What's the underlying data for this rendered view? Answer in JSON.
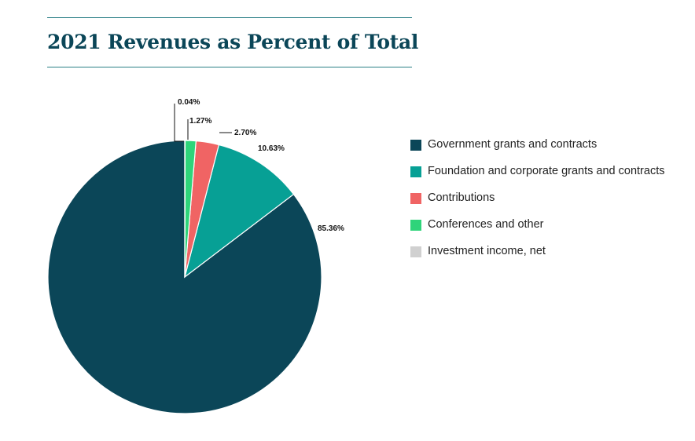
{
  "chart_data": {
    "type": "pie",
    "title": "2021 Revenues as Percent of Total",
    "slices": [
      {
        "name": "Government grants and contracts",
        "value": 85.36,
        "label": "85.36%",
        "color": "#0b4658"
      },
      {
        "name": "Foundation and corporate grants and contracts",
        "value": 10.63,
        "label": "10.63%",
        "color": "#07a095"
      },
      {
        "name": "Contributions",
        "value": 2.7,
        "label": "2.70%",
        "color": "#f06464"
      },
      {
        "name": "Conferences and other",
        "value": 1.27,
        "label": "1.27%",
        "color": "#2ed47a"
      },
      {
        "name": "Investment income, net",
        "value": 0.04,
        "label": "0.04%",
        "color": "#d0d0d0"
      }
    ],
    "start_angle": "12 o'clock",
    "direction": "counterclockwise",
    "legend_position": "right"
  }
}
